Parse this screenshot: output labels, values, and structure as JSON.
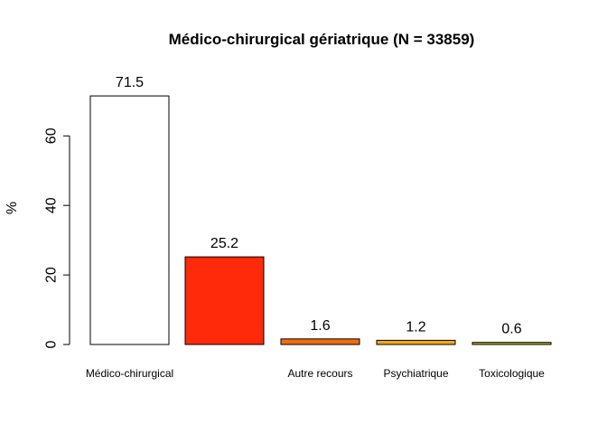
{
  "chart_data": {
    "type": "bar",
    "title": "Médico-chirurgical gériatrique (N = 33859)",
    "xlabel": "",
    "ylabel": "%",
    "categories": [
      "Médico-chirurgical",
      "",
      "Autre recours",
      "Psychiatrique",
      "Toxicologique"
    ],
    "values": [
      71.5,
      25.2,
      1.6,
      1.2,
      0.6
    ],
    "value_labels": [
      "71.5",
      "25.2",
      "1.6",
      "1.2",
      "0.6"
    ],
    "colors": [
      "#FFFFFF",
      "#FF2A0A",
      "#F26B0F",
      "#F2A913",
      "#B5B41E"
    ],
    "yticks": [
      0,
      20,
      40,
      60
    ],
    "ylim": [
      0,
      75
    ],
    "grid": false,
    "legend": "none"
  }
}
